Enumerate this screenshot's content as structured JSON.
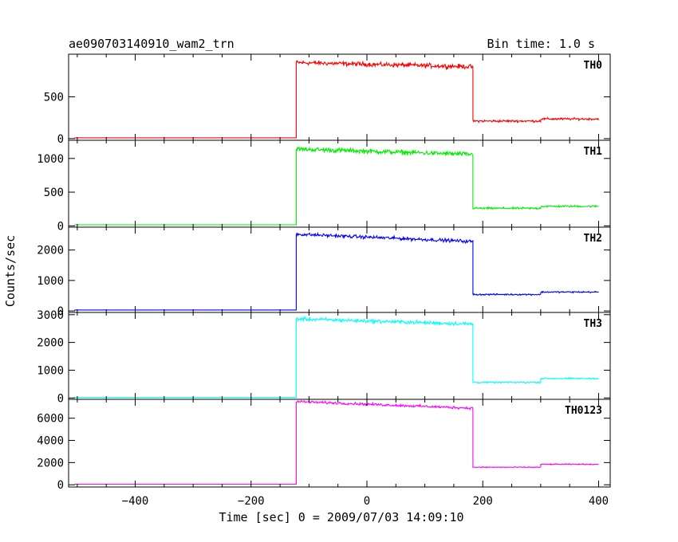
{
  "chart_data": {
    "type": "line",
    "title": "ae090703140910_wam2_trn",
    "bin_time": "Bin time: 1.0 s",
    "xlabel": "Time [sec] 0 = 2009/07/03 14:09:10",
    "ylabel": "Counts/sec",
    "xlim": [
      -515,
      420
    ],
    "x_ticks": [
      -400,
      -200,
      0,
      200,
      400
    ],
    "grid": false,
    "legend": "none",
    "panels": [
      {
        "name": "TH0",
        "color": "#ff0000",
        "ylim": [
          -20,
          1010
        ],
        "yticks": [
          0,
          500
        ],
        "yticklabels": [
          "0",
          "500"
        ],
        "segments": [
          {
            "x": [
              -505,
              -122
            ],
            "y": [
              10,
              10
            ],
            "noise": 0
          },
          {
            "x": [
              -122,
              183
            ],
            "y": [
              910,
              860
            ],
            "noise": 22
          },
          {
            "x": [
              183,
              300
            ],
            "y": [
              210,
              210
            ],
            "noise": 11
          },
          {
            "x": [
              300,
              400
            ],
            "y": [
              235,
              235
            ],
            "noise": 11
          }
        ]
      },
      {
        "name": "TH1",
        "color": "#00ee00",
        "ylim": [
          -20,
          1270
        ],
        "yticks": [
          0,
          500,
          1000
        ],
        "yticklabels": [
          "0",
          "500",
          "1000"
        ],
        "segments": [
          {
            "x": [
              -505,
              -122
            ],
            "y": [
              15,
              15
            ],
            "noise": 0
          },
          {
            "x": [
              -122,
              183
            ],
            "y": [
              1140,
              1060
            ],
            "noise": 28
          },
          {
            "x": [
              183,
              300
            ],
            "y": [
              260,
              260
            ],
            "noise": 12
          },
          {
            "x": [
              300,
              400
            ],
            "y": [
              290,
              290
            ],
            "noise": 12
          }
        ]
      },
      {
        "name": "TH2",
        "color": "#0000ff",
        "ylim": [
          -50,
          2750
        ],
        "yticks": [
          0,
          1000,
          2000
        ],
        "yticklabels": [
          "0",
          "1000",
          "2000"
        ],
        "segments": [
          {
            "x": [
              -505,
              -122
            ],
            "y": [
              30,
              30
            ],
            "noise": 0
          },
          {
            "x": [
              -122,
              183
            ],
            "y": [
              2520,
              2280
            ],
            "noise": 45
          },
          {
            "x": [
              183,
              300
            ],
            "y": [
              540,
              540
            ],
            "noise": 20
          },
          {
            "x": [
              300,
              400
            ],
            "y": [
              620,
              620
            ],
            "noise": 20
          }
        ]
      },
      {
        "name": "TH3",
        "color": "#00ffff",
        "ylim": [
          -50,
          3080
        ],
        "yticks": [
          0,
          1000,
          2000,
          3000
        ],
        "yticklabels": [
          "0",
          "1000",
          "2000",
          "3000"
        ],
        "segments": [
          {
            "x": [
              -505,
              -122
            ],
            "y": [
              20,
              20
            ],
            "noise": 0
          },
          {
            "x": [
              -122,
              183
            ],
            "y": [
              2850,
              2660
            ],
            "noise": 55
          },
          {
            "x": [
              183,
              300
            ],
            "y": [
              560,
              560
            ],
            "noise": 20
          },
          {
            "x": [
              300,
              400
            ],
            "y": [
              700,
              700
            ],
            "noise": 20
          }
        ]
      },
      {
        "name": "TH0123",
        "color": "#ff00ff",
        "ylim": [
          -200,
          7700
        ],
        "yticks": [
          0,
          2000,
          4000,
          6000
        ],
        "yticklabels": [
          "0",
          "2000",
          "4000",
          "6000"
        ],
        "segments": [
          {
            "x": [
              -505,
              -122
            ],
            "y": [
              50,
              50
            ],
            "noise": 0
          },
          {
            "x": [
              -122,
              183
            ],
            "y": [
              7500,
              6900
            ],
            "noise": 90
          },
          {
            "x": [
              183,
              300
            ],
            "y": [
              1580,
              1580
            ],
            "noise": 35
          },
          {
            "x": [
              300,
              400
            ],
            "y": [
              1850,
              1850
            ],
            "noise": 35
          }
        ]
      }
    ]
  }
}
